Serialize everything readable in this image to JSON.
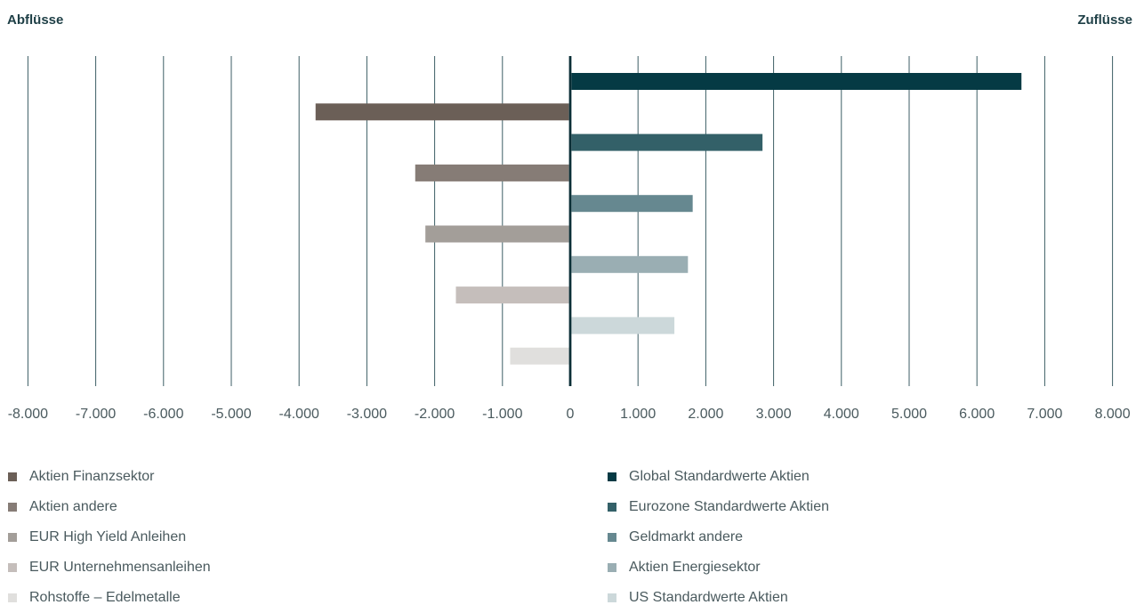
{
  "left_title": "Abflüsse",
  "right_title": "Zuflüsse",
  "chart_data": {
    "type": "bar",
    "orientation": "horizontal",
    "xlim": [
      -8000,
      8000
    ],
    "xticks": [
      -8000,
      -7000,
      -6000,
      -5000,
      -4000,
      -3000,
      -2000,
      -1000,
      0,
      1000,
      2000,
      3000,
      4000,
      5000,
      6000,
      7000,
      8000
    ],
    "xtick_labels": [
      "-8.000",
      "-7.000",
      "-6.000",
      "-5.000",
      "-4.000",
      "-3.000",
      "-2.000",
      "-1.000",
      "0",
      "1.000",
      "2.000",
      "3.000",
      "4.000",
      "5.000",
      "6.000",
      "7.000",
      "8.000"
    ],
    "grid": "vertical",
    "series": [
      {
        "name": "Global Standardwerte Aktien",
        "value": 6650,
        "color": "#053a44"
      },
      {
        "name": "Aktien Finanzsektor",
        "value": -3750,
        "color": "#6b5f57"
      },
      {
        "name": "Eurozone Standardwerte Aktien",
        "value": 2830,
        "color": "#336068"
      },
      {
        "name": "Aktien andere",
        "value": -2280,
        "color": "#867c76"
      },
      {
        "name": "Geldmarkt andere",
        "value": 1800,
        "color": "#668890"
      },
      {
        "name": "EUR High Yield Anleihen",
        "value": -2130,
        "color": "#a39e99"
      },
      {
        "name": "Aktien Energiesektor",
        "value": 1730,
        "color": "#9aaeb3"
      },
      {
        "name": "EUR Unternehmensanleihen",
        "value": -1680,
        "color": "#c5bebb"
      },
      {
        "name": "US Standardwerte Aktien",
        "value": 1530,
        "color": "#ccd8da"
      },
      {
        "name": "Rohstoffe – Edelmetalle",
        "value": -880,
        "color": "#e0dfdd"
      }
    ],
    "legend_left": [
      {
        "label": "Aktien Finanzsektor",
        "color": "#6b5f57"
      },
      {
        "label": "Aktien andere",
        "color": "#867c76"
      },
      {
        "label": "EUR High Yield Anleihen",
        "color": "#a39e99"
      },
      {
        "label": "EUR Unternehmensanleihen",
        "color": "#c5bebb"
      },
      {
        "label": "Rohstoffe – Edelmetalle",
        "color": "#e0dfdd"
      }
    ],
    "legend_right": [
      {
        "label": "Global Standardwerte Aktien",
        "color": "#053a44"
      },
      {
        "label": "Eurozone Standardwerte Aktien",
        "color": "#336068"
      },
      {
        "label": "Geldmarkt andere",
        "color": "#668890"
      },
      {
        "label": "Aktien Energiesektor",
        "color": "#9aaeb3"
      },
      {
        "label": "US Standardwerte Aktien",
        "color": "#ccd8da"
      }
    ],
    "colors": {
      "gridline": "#3d5e65",
      "zero_axis": "#0b2f36",
      "tick_text": "#4a5a5e"
    }
  }
}
